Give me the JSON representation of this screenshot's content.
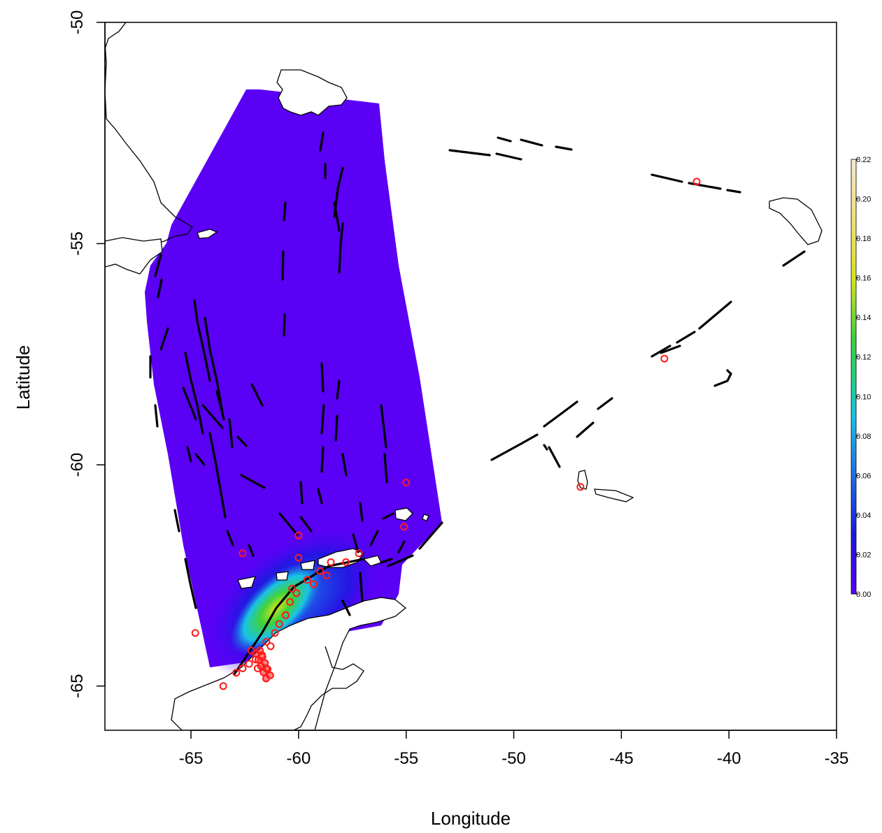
{
  "map": {
    "xlabel": "Longitude",
    "ylabel": "Latitude",
    "xlim": [
      -69,
      -35
    ],
    "ylim": [
      -66,
      -50
    ],
    "x_ticks": [
      {
        "value": -65,
        "label": "-65"
      },
      {
        "value": -60,
        "label": "-60"
      },
      {
        "value": -55,
        "label": "-55"
      },
      {
        "value": -50,
        "label": "-50"
      },
      {
        "value": -45,
        "label": "-45"
      },
      {
        "value": -40,
        "label": "-40"
      },
      {
        "value": -35,
        "label": "-35"
      }
    ],
    "y_ticks": [
      {
        "value": -50,
        "label": "-50"
      },
      {
        "value": -55,
        "label": "-55"
      },
      {
        "value": -60,
        "label": "-60"
      },
      {
        "value": -65,
        "label": "-65"
      }
    ],
    "colors": {
      "background_field": "#5a00f5",
      "coastline": "#000000",
      "track": "#000000",
      "observation": "#ff1a1a",
      "frame": "#000000"
    },
    "colorbar": {
      "min": 0.0,
      "max": 0.22,
      "ticks": [
        {
          "value": 0.0,
          "label": "0.00"
        },
        {
          "value": 0.02,
          "label": "0.02"
        },
        {
          "value": 0.04,
          "label": "0.04"
        },
        {
          "value": 0.06,
          "label": "0.06"
        },
        {
          "value": 0.08,
          "label": "0.08"
        },
        {
          "value": 0.1,
          "label": "0.10"
        },
        {
          "value": 0.12,
          "label": "0.12"
        },
        {
          "value": 0.14,
          "label": "0.14"
        },
        {
          "value": 0.16,
          "label": "0.16"
        },
        {
          "value": 0.18,
          "label": "0.18"
        },
        {
          "value": 0.2,
          "label": "0.20"
        },
        {
          "value": 0.22,
          "label": "0.22"
        }
      ],
      "stops": [
        {
          "value": 0.0,
          "color": "#5a00f5"
        },
        {
          "value": 0.03,
          "color": "#1a1ae0"
        },
        {
          "value": 0.06,
          "color": "#1e6fe8"
        },
        {
          "value": 0.09,
          "color": "#19c3e6"
        },
        {
          "value": 0.11,
          "color": "#1ed27a"
        },
        {
          "value": 0.13,
          "color": "#3fd23c"
        },
        {
          "value": 0.16,
          "color": "#d8e41e"
        },
        {
          "value": 0.19,
          "color": "#efe07a"
        },
        {
          "value": 0.22,
          "color": "#f3e8d0"
        }
      ]
    },
    "observations": [
      {
        "lon": -62.6,
        "lat": -62.0
      },
      {
        "lon": -60.0,
        "lat": -61.6
      },
      {
        "lon": -60.0,
        "lat": -62.1
      },
      {
        "lon": -55.0,
        "lat": -60.4
      },
      {
        "lon": -55.1,
        "lat": -61.4
      },
      {
        "lon": -57.2,
        "lat": -62.0
      },
      {
        "lon": -57.8,
        "lat": -62.2
      },
      {
        "lon": -58.5,
        "lat": -62.2
      },
      {
        "lon": -59.0,
        "lat": -62.4
      },
      {
        "lon": -59.3,
        "lat": -62.7
      },
      {
        "lon": -59.6,
        "lat": -62.6
      },
      {
        "lon": -60.1,
        "lat": -62.9
      },
      {
        "lon": -60.4,
        "lat": -63.1
      },
      {
        "lon": -60.6,
        "lat": -63.4
      },
      {
        "lon": -60.9,
        "lat": -63.6
      },
      {
        "lon": -61.1,
        "lat": -63.8
      },
      {
        "lon": -61.3,
        "lat": -64.1
      },
      {
        "lon": -61.5,
        "lat": -64.0
      },
      {
        "lon": -61.7,
        "lat": -64.3
      },
      {
        "lon": -62.0,
        "lat": -64.4
      },
      {
        "lon": -62.3,
        "lat": -64.5
      },
      {
        "lon": -62.6,
        "lat": -64.6
      },
      {
        "lon": -62.9,
        "lat": -64.7
      },
      {
        "lon": -63.5,
        "lat": -65.0
      },
      {
        "lon": -61.5,
        "lat": -64.6
      },
      {
        "lon": -62.2,
        "lat": -64.2
      },
      {
        "lon": -61.9,
        "lat": -64.6
      },
      {
        "lon": -41.5,
        "lat": -53.6
      },
      {
        "lon": -46.9,
        "lat": -60.5
      },
      {
        "lon": -43.0,
        "lat": -57.6
      },
      {
        "lon": -64.8,
        "lat": -63.8
      },
      {
        "lon": -58.7,
        "lat": -62.5
      },
      {
        "lon": -60.3,
        "lat": -62.8
      }
    ]
  }
}
